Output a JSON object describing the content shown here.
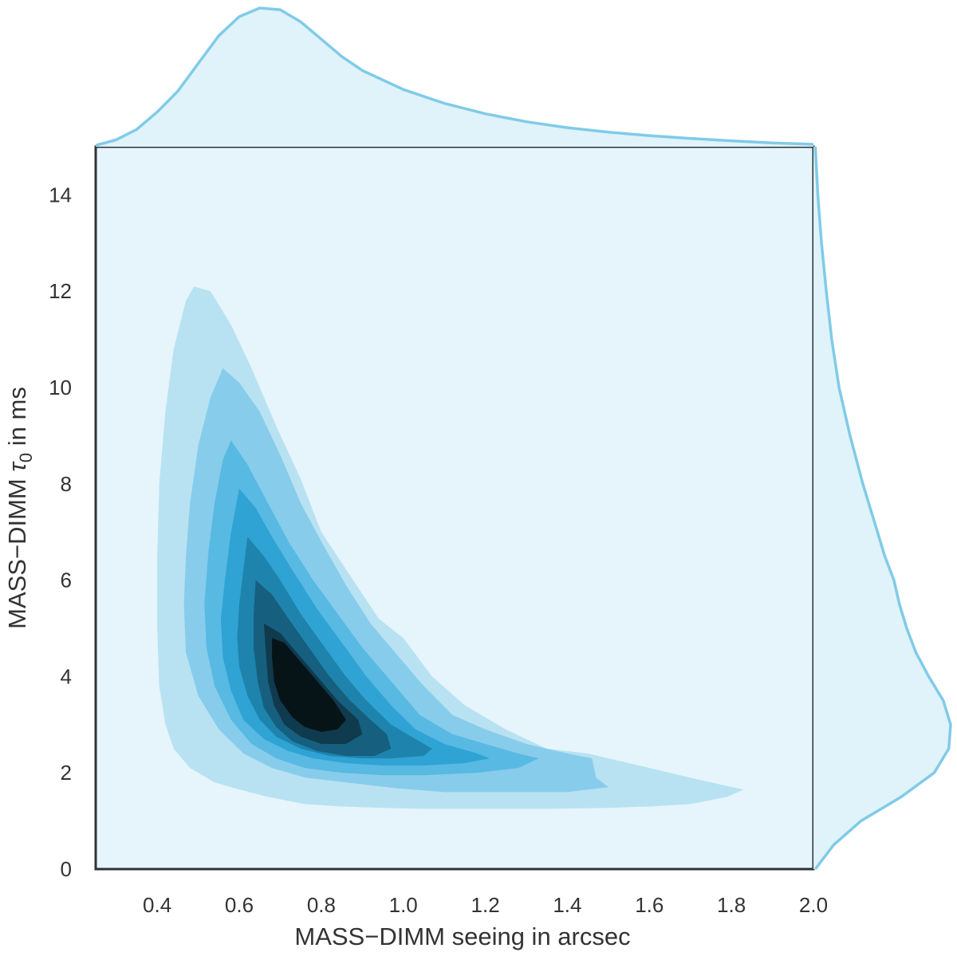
{
  "chart_data": {
    "type": "kde-joint",
    "xlabel": "MASS−DIMM seeing in arcsec",
    "ylabel_prefix": "MASS−DIMM ",
    "ylabel_symbol": "τ",
    "ylabel_subscript": "0",
    "ylabel_suffix": " in ms",
    "xlim": [
      0.25,
      2.0
    ],
    "ylim": [
      0,
      15
    ],
    "xticks": [
      "0.4",
      "0.6",
      "0.8",
      "1.0",
      "1.2",
      "1.4",
      "1.6",
      "1.8",
      "2.0"
    ],
    "yticks": [
      "0",
      "2",
      "4",
      "6",
      "8",
      "10",
      "12",
      "14"
    ],
    "grid": false,
    "colors": {
      "background": "#e6f5fb",
      "frame": "#2f3336",
      "marginal_line": "#80cbe8",
      "marginal_fill": "#e0f3fa",
      "levels": [
        "#b8e2f2",
        "#87cceb",
        "#58b9e3",
        "#2fa3d4",
        "#1e84ad",
        "#165f7f",
        "#103a4d",
        "#061418"
      ]
    },
    "contours": [
      [
        [
          0.49,
          12.1
        ],
        [
          0.53,
          12.0
        ],
        [
          0.58,
          11.3
        ],
        [
          0.63,
          10.4
        ],
        [
          0.69,
          9.2
        ],
        [
          0.75,
          8.1
        ],
        [
          0.8,
          7.0
        ],
        [
          0.87,
          6.1
        ],
        [
          0.94,
          5.2
        ],
        [
          1.0,
          4.8
        ],
        [
          1.07,
          4.0
        ],
        [
          1.15,
          3.4
        ],
        [
          1.25,
          2.9
        ],
        [
          1.35,
          2.5
        ],
        [
          1.45,
          2.4
        ],
        [
          1.55,
          2.2
        ],
        [
          1.65,
          2.0
        ],
        [
          1.75,
          1.8
        ],
        [
          1.83,
          1.65
        ],
        [
          1.79,
          1.5
        ],
        [
          1.7,
          1.35
        ],
        [
          1.6,
          1.3
        ],
        [
          1.5,
          1.27
        ],
        [
          1.35,
          1.25
        ],
        [
          1.2,
          1.25
        ],
        [
          1.05,
          1.25
        ],
        [
          0.95,
          1.27
        ],
        [
          0.85,
          1.3
        ],
        [
          0.76,
          1.35
        ],
        [
          0.67,
          1.5
        ],
        [
          0.6,
          1.65
        ],
        [
          0.54,
          1.8
        ],
        [
          0.48,
          2.1
        ],
        [
          0.44,
          2.5
        ],
        [
          0.42,
          3.0
        ],
        [
          0.405,
          3.8
        ],
        [
          0.4,
          5.0
        ],
        [
          0.4,
          6.5
        ],
        [
          0.405,
          8.0
        ],
        [
          0.42,
          9.5
        ],
        [
          0.44,
          10.8
        ],
        [
          0.47,
          11.8
        ]
      ],
      [
        [
          0.56,
          10.4
        ],
        [
          0.6,
          10.1
        ],
        [
          0.65,
          9.5
        ],
        [
          0.7,
          8.6
        ],
        [
          0.75,
          7.6
        ],
        [
          0.8,
          6.8
        ],
        [
          0.86,
          5.9
        ],
        [
          0.92,
          5.1
        ],
        [
          0.98,
          4.5
        ],
        [
          1.05,
          3.8
        ],
        [
          1.12,
          3.2
        ],
        [
          1.2,
          2.9
        ],
        [
          1.3,
          2.6
        ],
        [
          1.4,
          2.4
        ],
        [
          1.46,
          2.3
        ],
        [
          1.47,
          1.9
        ],
        [
          1.5,
          1.7
        ],
        [
          1.4,
          1.6
        ],
        [
          1.25,
          1.6
        ],
        [
          1.1,
          1.6
        ],
        [
          0.98,
          1.68
        ],
        [
          0.86,
          1.8
        ],
        [
          0.76,
          1.9
        ],
        [
          0.68,
          2.1
        ],
        [
          0.61,
          2.4
        ],
        [
          0.55,
          2.9
        ],
        [
          0.5,
          3.6
        ],
        [
          0.47,
          4.5
        ],
        [
          0.465,
          5.5
        ],
        [
          0.47,
          6.5
        ],
        [
          0.48,
          7.6
        ],
        [
          0.5,
          8.8
        ],
        [
          0.53,
          9.8
        ]
      ],
      [
        [
          0.58,
          8.9
        ],
        [
          0.62,
          8.4
        ],
        [
          0.67,
          7.6
        ],
        [
          0.72,
          6.8
        ],
        [
          0.78,
          6.0
        ],
        [
          0.84,
          5.3
        ],
        [
          0.9,
          4.6
        ],
        [
          0.97,
          3.9
        ],
        [
          1.04,
          3.2
        ],
        [
          1.12,
          2.8
        ],
        [
          1.2,
          2.6
        ],
        [
          1.28,
          2.4
        ],
        [
          1.33,
          2.3
        ],
        [
          1.28,
          2.1
        ],
        [
          1.18,
          2.0
        ],
        [
          1.05,
          1.95
        ],
        [
          0.95,
          1.95
        ],
        [
          0.85,
          2.0
        ],
        [
          0.76,
          2.1
        ],
        [
          0.69,
          2.3
        ],
        [
          0.63,
          2.6
        ],
        [
          0.58,
          3.1
        ],
        [
          0.54,
          3.8
        ],
        [
          0.52,
          4.6
        ],
        [
          0.515,
          5.5
        ],
        [
          0.525,
          6.6
        ],
        [
          0.54,
          7.6
        ],
        [
          0.56,
          8.5
        ]
      ],
      [
        [
          0.6,
          7.9
        ],
        [
          0.64,
          7.5
        ],
        [
          0.68,
          6.9
        ],
        [
          0.73,
          6.2
        ],
        [
          0.79,
          5.4
        ],
        [
          0.85,
          4.7
        ],
        [
          0.91,
          4.0
        ],
        [
          0.97,
          3.4
        ],
        [
          1.03,
          2.9
        ],
        [
          1.1,
          2.6
        ],
        [
          1.18,
          2.4
        ],
        [
          1.21,
          2.3
        ],
        [
          1.15,
          2.2
        ],
        [
          1.05,
          2.15
        ],
        [
          0.95,
          2.15
        ],
        [
          0.86,
          2.2
        ],
        [
          0.78,
          2.3
        ],
        [
          0.72,
          2.45
        ],
        [
          0.66,
          2.7
        ],
        [
          0.61,
          3.1
        ],
        [
          0.58,
          3.7
        ],
        [
          0.56,
          4.4
        ],
        [
          0.555,
          5.2
        ],
        [
          0.565,
          6.0
        ],
        [
          0.58,
          7.0
        ]
      ],
      [
        [
          0.62,
          6.9
        ],
        [
          0.66,
          6.5
        ],
        [
          0.7,
          6.0
        ],
        [
          0.75,
          5.3
        ],
        [
          0.8,
          4.7
        ],
        [
          0.86,
          4.0
        ],
        [
          0.91,
          3.5
        ],
        [
          0.97,
          3.0
        ],
        [
          1.03,
          2.7
        ],
        [
          1.07,
          2.5
        ],
        [
          1.05,
          2.35
        ],
        [
          0.97,
          2.3
        ],
        [
          0.9,
          2.3
        ],
        [
          0.82,
          2.35
        ],
        [
          0.75,
          2.5
        ],
        [
          0.69,
          2.75
        ],
        [
          0.65,
          3.1
        ],
        [
          0.62,
          3.6
        ],
        [
          0.6,
          4.2
        ],
        [
          0.595,
          4.8
        ],
        [
          0.6,
          5.5
        ],
        [
          0.61,
          6.2
        ]
      ],
      [
        [
          0.64,
          6.0
        ],
        [
          0.68,
          5.7
        ],
        [
          0.72,
          5.2
        ],
        [
          0.77,
          4.6
        ],
        [
          0.82,
          4.0
        ],
        [
          0.87,
          3.5
        ],
        [
          0.92,
          3.1
        ],
        [
          0.96,
          2.8
        ],
        [
          0.97,
          2.5
        ],
        [
          0.93,
          2.35
        ],
        [
          0.86,
          2.35
        ],
        [
          0.79,
          2.45
        ],
        [
          0.73,
          2.65
        ],
        [
          0.69,
          2.95
        ],
        [
          0.66,
          3.35
        ],
        [
          0.645,
          3.9
        ],
        [
          0.635,
          4.6
        ],
        [
          0.635,
          5.3
        ]
      ],
      [
        [
          0.66,
          5.1
        ],
        [
          0.7,
          4.9
        ],
        [
          0.74,
          4.5
        ],
        [
          0.79,
          4.0
        ],
        [
          0.84,
          3.5
        ],
        [
          0.89,
          3.1
        ],
        [
          0.9,
          2.8
        ],
        [
          0.86,
          2.6
        ],
        [
          0.8,
          2.6
        ],
        [
          0.75,
          2.75
        ],
        [
          0.71,
          3.0
        ],
        [
          0.685,
          3.4
        ],
        [
          0.67,
          3.9
        ],
        [
          0.665,
          4.5
        ]
      ],
      [
        [
          0.68,
          4.8
        ],
        [
          0.71,
          4.7
        ],
        [
          0.75,
          4.3
        ],
        [
          0.79,
          3.9
        ],
        [
          0.83,
          3.5
        ],
        [
          0.86,
          3.1
        ],
        [
          0.84,
          2.9
        ],
        [
          0.8,
          2.85
        ],
        [
          0.76,
          2.95
        ],
        [
          0.73,
          3.15
        ],
        [
          0.7,
          3.5
        ],
        [
          0.685,
          3.9
        ],
        [
          0.68,
          4.4
        ]
      ]
    ],
    "marginal_x": {
      "x": [
        0.25,
        0.3,
        0.35,
        0.4,
        0.45,
        0.5,
        0.55,
        0.6,
        0.65,
        0.7,
        0.75,
        0.8,
        0.85,
        0.9,
        1.0,
        1.1,
        1.2,
        1.3,
        1.4,
        1.5,
        1.6,
        1.7,
        1.8,
        1.9,
        2.0
      ],
      "density": [
        0.04,
        0.2,
        0.5,
        1.0,
        1.6,
        2.4,
        3.2,
        3.75,
        4.0,
        3.95,
        3.6,
        3.1,
        2.6,
        2.2,
        1.65,
        1.25,
        0.95,
        0.72,
        0.55,
        0.42,
        0.32,
        0.24,
        0.17,
        0.11,
        0.07
      ]
    },
    "marginal_y": {
      "y": [
        0,
        0.5,
        1.0,
        1.5,
        2.0,
        2.5,
        3.0,
        3.5,
        4.0,
        4.5,
        5.0,
        5.5,
        6.0,
        6.5,
        7.0,
        7.5,
        8.0,
        9.0,
        10.0,
        11.0,
        12.0,
        13.0,
        14.0,
        15.0
      ],
      "density": [
        0.05,
        0.55,
        1.3,
        2.4,
        3.3,
        3.7,
        3.75,
        3.55,
        3.15,
        2.8,
        2.55,
        2.35,
        2.2,
        1.95,
        1.75,
        1.55,
        1.35,
        1.0,
        0.7,
        0.5,
        0.35,
        0.22,
        0.12,
        0.05
      ]
    }
  }
}
